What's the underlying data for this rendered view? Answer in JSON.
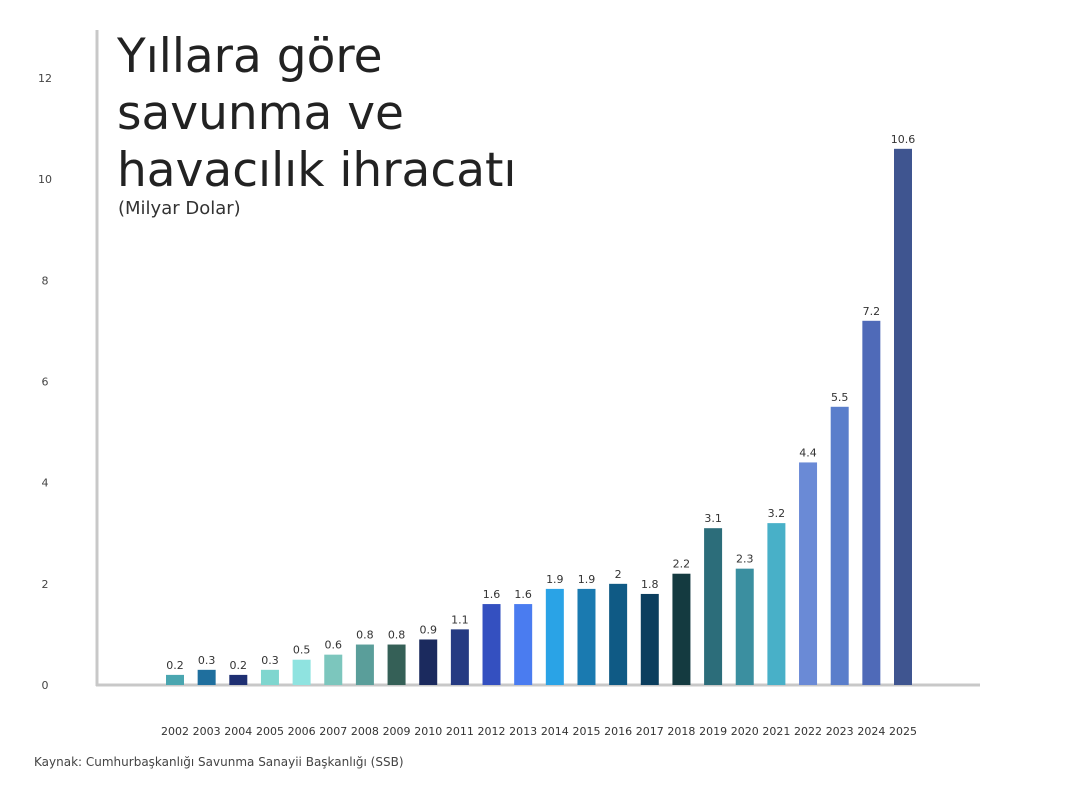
{
  "title": "Yıllara göre\nsavunma ve\nhavacılık ihracatı",
  "subtitle": "(Milyar Dolar)",
  "source": "Kaynak: Cumhurbaşkanlığı Savunma Sanayii Başkanlığı (SSB)",
  "chart_data": {
    "type": "bar",
    "title": "Yıllara göre savunma ve havacılık ihracatı",
    "subtitle": "(Milyar Dolar)",
    "xlabel": "",
    "ylabel": "",
    "ylim": [
      0,
      12
    ],
    "yticks": [
      0,
      2,
      4,
      6,
      8,
      10,
      12
    ],
    "grid": false,
    "categories": [
      "2002",
      "2003",
      "2004",
      "2005",
      "2006",
      "2007",
      "2008",
      "2009",
      "2010",
      "2011",
      "2012",
      "2013",
      "2014",
      "2015",
      "2016",
      "2017",
      "2018",
      "2019",
      "2020",
      "2021",
      "2022",
      "2023",
      "2024",
      "2025"
    ],
    "values": [
      0.2,
      0.3,
      0.2,
      0.3,
      0.5,
      0.6,
      0.8,
      0.8,
      0.9,
      1.1,
      1.6,
      1.6,
      1.9,
      1.9,
      2,
      1.8,
      2.2,
      3.1,
      2.3,
      3.2,
      4.4,
      5.5,
      7.2,
      10.6
    ],
    "colors": [
      "#4aa6b0",
      "#1f6f9e",
      "#1e2f72",
      "#7fd6cf",
      "#8fe3e0",
      "#7cc6bd",
      "#5a9e9a",
      "#356057",
      "#1b2a5e",
      "#253a82",
      "#3450c0",
      "#4a7cf0",
      "#2aa3e6",
      "#1a7ab0",
      "#0f5a85",
      "#0b3e5e",
      "#143a40",
      "#2c6d7a",
      "#3b8fa0",
      "#48b0c8",
      "#6a8ad6",
      "#5a7ecb",
      "#4f6ab8",
      "#3f5590"
    ]
  }
}
